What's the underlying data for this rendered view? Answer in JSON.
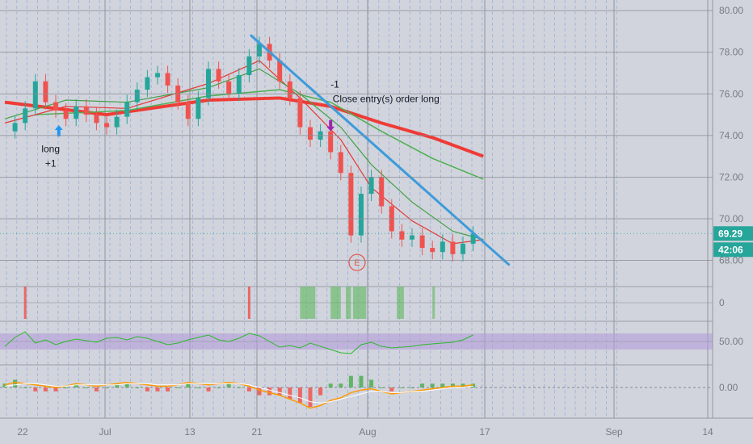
{
  "chart_data": {
    "type": "line",
    "symbol_interval": "candles",
    "price_axis": {
      "ticks": [
        "80.00",
        "78.00",
        "76.00",
        "74.00",
        "72.00",
        "70.00",
        "68.00"
      ],
      "ylim": [
        67.4,
        80.2
      ],
      "current_price": "69.29",
      "countdown": "42:06",
      "badge_color": "#26a69a"
    },
    "time_axis": {
      "ticks": [
        "22",
        "Jul",
        "13",
        "21",
        "Aug",
        "17",
        "Sep",
        "14"
      ]
    },
    "price_series": [
      {
        "t": 0,
        "v": 74.2
      },
      {
        "t": 1,
        "v": 74.6
      },
      {
        "t": 2,
        "v": 75.3
      },
      {
        "t": 3,
        "v": 76.6
      },
      {
        "t": 4,
        "v": 75.6
      },
      {
        "t": 5,
        "v": 75.2
      },
      {
        "t": 6,
        "v": 74.8
      },
      {
        "t": 7,
        "v": 75.4
      },
      {
        "t": 8,
        "v": 75.0
      },
      {
        "t": 9,
        "v": 74.6
      },
      {
        "t": 10,
        "v": 74.4
      },
      {
        "t": 11,
        "v": 74.9
      },
      {
        "t": 12,
        "v": 75.6
      },
      {
        "t": 13,
        "v": 76.2
      },
      {
        "t": 14,
        "v": 76.8
      },
      {
        "t": 15,
        "v": 77.0
      },
      {
        "t": 16,
        "v": 76.4
      },
      {
        "t": 17,
        "v": 75.6
      },
      {
        "t": 18,
        "v": 74.8
      },
      {
        "t": 19,
        "v": 75.8
      },
      {
        "t": 20,
        "v": 77.2
      },
      {
        "t": 21,
        "v": 76.6
      },
      {
        "t": 22,
        "v": 76.0
      },
      {
        "t": 23,
        "v": 76.9
      },
      {
        "t": 24,
        "v": 77.8
      },
      {
        "t": 25,
        "v": 78.4
      },
      {
        "t": 26,
        "v": 77.6
      },
      {
        "t": 27,
        "v": 76.6
      },
      {
        "t": 28,
        "v": 75.8
      },
      {
        "t": 29,
        "v": 74.4
      },
      {
        "t": 30,
        "v": 73.8
      },
      {
        "t": 31,
        "v": 74.2
      },
      {
        "t": 32,
        "v": 73.2
      },
      {
        "t": 33,
        "v": 72.2
      },
      {
        "t": 34,
        "v": 69.2
      },
      {
        "t": 35,
        "v": 71.2
      },
      {
        "t": 36,
        "v": 72.0
      },
      {
        "t": 37,
        "v": 70.6
      },
      {
        "t": 38,
        "v": 69.4
      },
      {
        "t": 39,
        "v": 69.0
      },
      {
        "t": 40,
        "v": 69.2
      },
      {
        "t": 41,
        "v": 68.6
      },
      {
        "t": 42,
        "v": 68.4
      },
      {
        "t": 43,
        "v": 68.9
      },
      {
        "t": 44,
        "v": 68.3
      },
      {
        "t": 45,
        "v": 68.8
      },
      {
        "t": 46,
        "v": 69.29
      }
    ],
    "moving_averages": [
      {
        "color": "#ef3b36",
        "width": 4,
        "points": [
          [
            0,
            75.6
          ],
          [
            10,
            75.0
          ],
          [
            20,
            75.7
          ],
          [
            27,
            75.8
          ],
          [
            32,
            75.4
          ],
          [
            37,
            74.6
          ],
          [
            42,
            73.9
          ],
          [
            47,
            73.0
          ]
        ]
      },
      {
        "color": "#4caf50",
        "width": 1.5,
        "points": [
          [
            3,
            75.0
          ],
          [
            12,
            75.2
          ],
          [
            20,
            75.9
          ],
          [
            27,
            76.2
          ],
          [
            32,
            75.6
          ],
          [
            37,
            74.2
          ],
          [
            42,
            72.9
          ],
          [
            47,
            71.9
          ]
        ]
      },
      {
        "color": "#e53935",
        "width": 1.2,
        "points": [
          [
            0,
            74.6
          ],
          [
            6,
            75.4
          ],
          [
            12,
            75.3
          ],
          [
            20,
            76.5
          ],
          [
            25,
            77.6
          ],
          [
            29,
            75.8
          ],
          [
            33,
            73.8
          ],
          [
            36,
            71.5
          ],
          [
            40,
            69.9
          ],
          [
            44,
            68.8
          ],
          [
            47,
            69.0
          ]
        ]
      },
      {
        "color": "#43a047",
        "width": 1.2,
        "points": [
          [
            0,
            74.8
          ],
          [
            6,
            75.7
          ],
          [
            12,
            75.6
          ],
          [
            20,
            76.3
          ],
          [
            25,
            77.2
          ],
          [
            29,
            76.0
          ],
          [
            33,
            74.4
          ],
          [
            36,
            72.6
          ],
          [
            40,
            70.8
          ],
          [
            44,
            69.4
          ],
          [
            47,
            69.0
          ]
        ]
      }
    ],
    "trendline": {
      "color": "#3d9bdb",
      "from": [
        24.2,
        78.8
      ],
      "to": [
        49.5,
        67.8
      ]
    },
    "annotations": [
      {
        "text": "long",
        "t": 4.5,
        "v": 73.2
      },
      {
        "text": "+1",
        "t": 4.5,
        "v": 72.5
      },
      {
        "text": "-1",
        "t": 32,
        "v": 76.3
      },
      {
        "text": "Close entry(s) order long",
        "t": 32.2,
        "v": 75.6
      }
    ],
    "event_marker": {
      "label": "E",
      "t": 34.6,
      "v": 67.9,
      "color": "#e05a4f"
    },
    "signal_bars": {
      "red_at": [
        2,
        24
      ],
      "green_ranges": [
        [
          29,
          30.5
        ],
        [
          32,
          33
        ],
        [
          33.5,
          34
        ],
        [
          34.2,
          35.5
        ],
        [
          38.5,
          39.2
        ],
        [
          42,
          42.2
        ]
      ]
    },
    "rsi": {
      "ticks": [
        "50.00"
      ],
      "band": [
        40,
        60
      ],
      "values": [
        44,
        55,
        62,
        48,
        52,
        46,
        50,
        53,
        51,
        49,
        54,
        55,
        52,
        56,
        54,
        50,
        46,
        48,
        52,
        55,
        58,
        52,
        50,
        54,
        60,
        57,
        50,
        43,
        45,
        42,
        48,
        44,
        40,
        36,
        35,
        46,
        49,
        44,
        42,
        43,
        44,
        46,
        47,
        48,
        49,
        52,
        58
      ]
    },
    "macd": {
      "ticks": [
        "0.00"
      ],
      "line": [
        0.2,
        0.4,
        0.3,
        0.2,
        0.1,
        0.0,
        0.1,
        0.3,
        0.2,
        0.1,
        0.2,
        0.3,
        0.4,
        0.3,
        0.2,
        0.1,
        0.1,
        0.2,
        0.4,
        0.3,
        0.2,
        0.3,
        0.4,
        0.3,
        0.1,
        -0.2,
        -0.4,
        -0.6,
        -0.9,
        -1.2,
        -1.6,
        -1.4,
        -1.0,
        -0.8,
        -0.4,
        -0.2,
        -0.1,
        -0.3,
        -0.5,
        -0.4,
        -0.3,
        -0.2,
        -0.1,
        0.0,
        0.1,
        0.1,
        0.2
      ],
      "signal": [
        0.1,
        0.2,
        0.3,
        0.3,
        0.2,
        0.1,
        0.1,
        0.2,
        0.2,
        0.2,
        0.2,
        0.2,
        0.3,
        0.3,
        0.3,
        0.2,
        0.2,
        0.2,
        0.3,
        0.3,
        0.3,
        0.3,
        0.3,
        0.3,
        0.2,
        0.0,
        -0.2,
        -0.4,
        -0.6,
        -0.8,
        -1.1,
        -1.2,
        -1.1,
        -0.9,
        -0.7,
        -0.5,
        -0.3,
        -0.3,
        -0.4,
        -0.4,
        -0.3,
        -0.3,
        -0.2,
        -0.1,
        0.0,
        0.0,
        0.1
      ]
    }
  }
}
